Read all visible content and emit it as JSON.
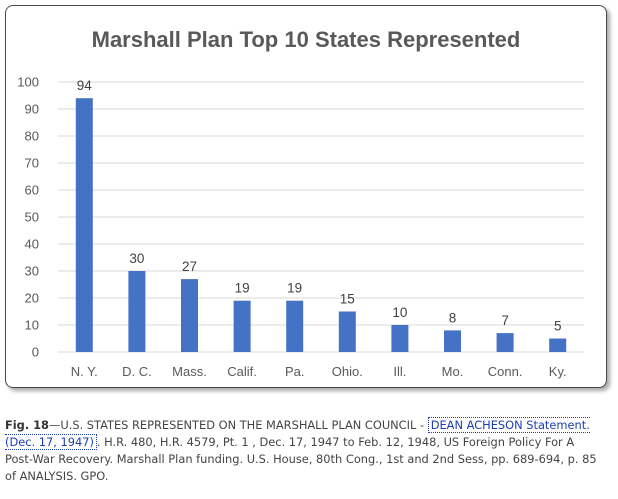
{
  "chart_data": {
    "type": "bar",
    "title": "Marshall Plan Top 10 States Represented",
    "xlabel": "",
    "ylabel": "",
    "categories": [
      "N. Y.",
      "D. C.",
      "Mass.",
      "Calif.",
      "Pa.",
      "Ohio.",
      "Ill.",
      "Mo.",
      "Conn.",
      "Ky."
    ],
    "values": [
      94,
      30,
      27,
      19,
      19,
      15,
      10,
      8,
      7,
      5
    ],
    "ylim": [
      0,
      100
    ],
    "yticks": [
      0,
      10,
      20,
      30,
      40,
      50,
      60,
      70,
      80,
      90,
      100
    ],
    "grid": true,
    "legend": "none",
    "bar_color": "#4472C4",
    "grid_color": "#d9d9d9"
  },
  "caption": {
    "fig_label": "Fig. 18",
    "text_before": "—U.S. STATES REPRESENTED ON THE MARSHALL PLAN COUNCIL - ",
    "link_text": "DEAN ACHESON Statement. (Dec. 17, 1947)",
    "text_after": ". H.R. 480, H.R. 4579, Pt. 1 , Dec. 17, 1947 to Feb. 12, 1948, US Foreign Policy For A Post-War Recovery. Marshall Plan funding. U.S. House, 80th Cong., 1st and 2nd Sess, pp. 689-694, p. 85 of ANALYSIS. GPO."
  }
}
